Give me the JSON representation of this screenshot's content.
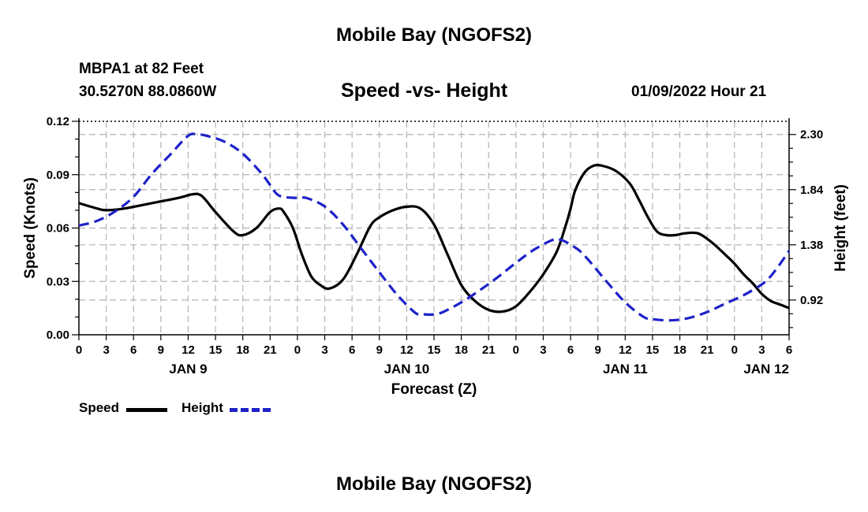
{
  "titles": {
    "main": "Mobile Bay (NGOFS2)",
    "bottom": "Mobile Bay (NGOFS2)",
    "station": "MBPA1 at 82 Feet",
    "coords": "30.5270N  88.0860W",
    "subtitle": "Speed -vs- Height",
    "datetime": "01/09/2022 Hour 21"
  },
  "legend": {
    "speed": "Speed",
    "height": "Height"
  },
  "colors": {
    "speed": "#000000",
    "height": "#1e22c8",
    "grid": "#b4b4b4"
  },
  "chart_data": {
    "type": "line",
    "title": "Speed -vs- Height",
    "xlabel": "Forecast (Z)",
    "ylabel": "Speed (Knots)",
    "y2label": "Height (feet)",
    "xlim": [
      0,
      78
    ],
    "ylim": [
      0,
      0.12
    ],
    "y2lim": [
      0.63,
      2.41
    ],
    "y_ticks": [
      "0.00",
      "0.03",
      "0.06",
      "0.09",
      "0.12"
    ],
    "y2_ticks": [
      "0.92",
      "1.38",
      "1.84",
      "2.30"
    ],
    "x_ticks": [
      "0",
      "3",
      "6",
      "9",
      "12",
      "15",
      "18",
      "21",
      "0",
      "3",
      "6",
      "9",
      "12",
      "15",
      "18",
      "21",
      "0",
      "3",
      "6",
      "9",
      "12",
      "15",
      "18",
      "21",
      "0",
      "3",
      "6"
    ],
    "day_labels": [
      {
        "label": "JAN 9",
        "hour": 12
      },
      {
        "label": "JAN 10",
        "hour": 36
      },
      {
        "label": "JAN 11",
        "hour": 60
      },
      {
        "label": "JAN 12",
        "hour": 75.5
      }
    ],
    "series": [
      {
        "name": "Speed",
        "axis": "left",
        "style": "solid",
        "x": [
          0,
          2,
          3,
          5,
          8,
          11,
          12.5,
          13.5,
          15,
          17,
          18,
          19.5,
          21,
          22,
          22.5,
          23.5,
          24.5,
          25.5,
          26.5,
          27.5,
          29,
          30.5,
          32,
          33,
          34.5,
          36,
          37.5,
          39,
          40.5,
          42,
          43.5,
          45,
          46.5,
          48,
          49.5,
          51,
          52.5,
          53.5,
          54,
          54.5,
          55.5,
          56.5,
          57.5,
          59,
          60.5,
          61.5,
          62.5,
          63.5,
          64.5,
          65.5,
          66.5,
          68,
          69.5,
          71,
          72,
          73,
          74,
          75,
          76,
          77,
          78
        ],
        "y": [
          0.074,
          0.071,
          0.07,
          0.071,
          0.074,
          0.077,
          0.079,
          0.078,
          0.069,
          0.058,
          0.056,
          0.06,
          0.069,
          0.071,
          0.069,
          0.06,
          0.045,
          0.033,
          0.028,
          0.026,
          0.031,
          0.045,
          0.061,
          0.066,
          0.07,
          0.072,
          0.071,
          0.062,
          0.045,
          0.028,
          0.019,
          0.014,
          0.013,
          0.016,
          0.024,
          0.034,
          0.047,
          0.062,
          0.071,
          0.081,
          0.091,
          0.095,
          0.095,
          0.092,
          0.085,
          0.076,
          0.066,
          0.058,
          0.056,
          0.056,
          0.057,
          0.057,
          0.052,
          0.045,
          0.04,
          0.034,
          0.029,
          0.023,
          0.019,
          0.017,
          0.015
        ]
      },
      {
        "name": "Height",
        "axis": "right",
        "style": "dashed",
        "x": [
          0,
          2,
          4,
          6,
          8,
          10,
          12,
          13,
          14,
          16,
          18,
          20,
          21,
          22,
          24,
          25,
          27,
          29,
          31,
          33,
          35,
          37,
          38,
          39,
          40,
          42,
          44,
          46,
          48,
          50,
          52,
          53,
          54,
          55,
          56,
          57,
          58,
          60,
          62,
          63,
          65,
          67,
          69,
          71,
          73,
          75,
          76,
          77,
          78
        ],
        "y": [
          1.54,
          1.58,
          1.66,
          1.78,
          1.97,
          2.13,
          2.29,
          2.3,
          2.29,
          2.24,
          2.14,
          1.98,
          1.88,
          1.79,
          1.77,
          1.77,
          1.7,
          1.55,
          1.35,
          1.15,
          0.96,
          0.81,
          0.8,
          0.8,
          0.82,
          0.9,
          1.0,
          1.11,
          1.23,
          1.34,
          1.42,
          1.42,
          1.38,
          1.33,
          1.25,
          1.16,
          1.07,
          0.9,
          0.78,
          0.76,
          0.75,
          0.77,
          0.82,
          0.89,
          0.96,
          1.05,
          1.12,
          1.22,
          1.33
        ]
      }
    ]
  }
}
